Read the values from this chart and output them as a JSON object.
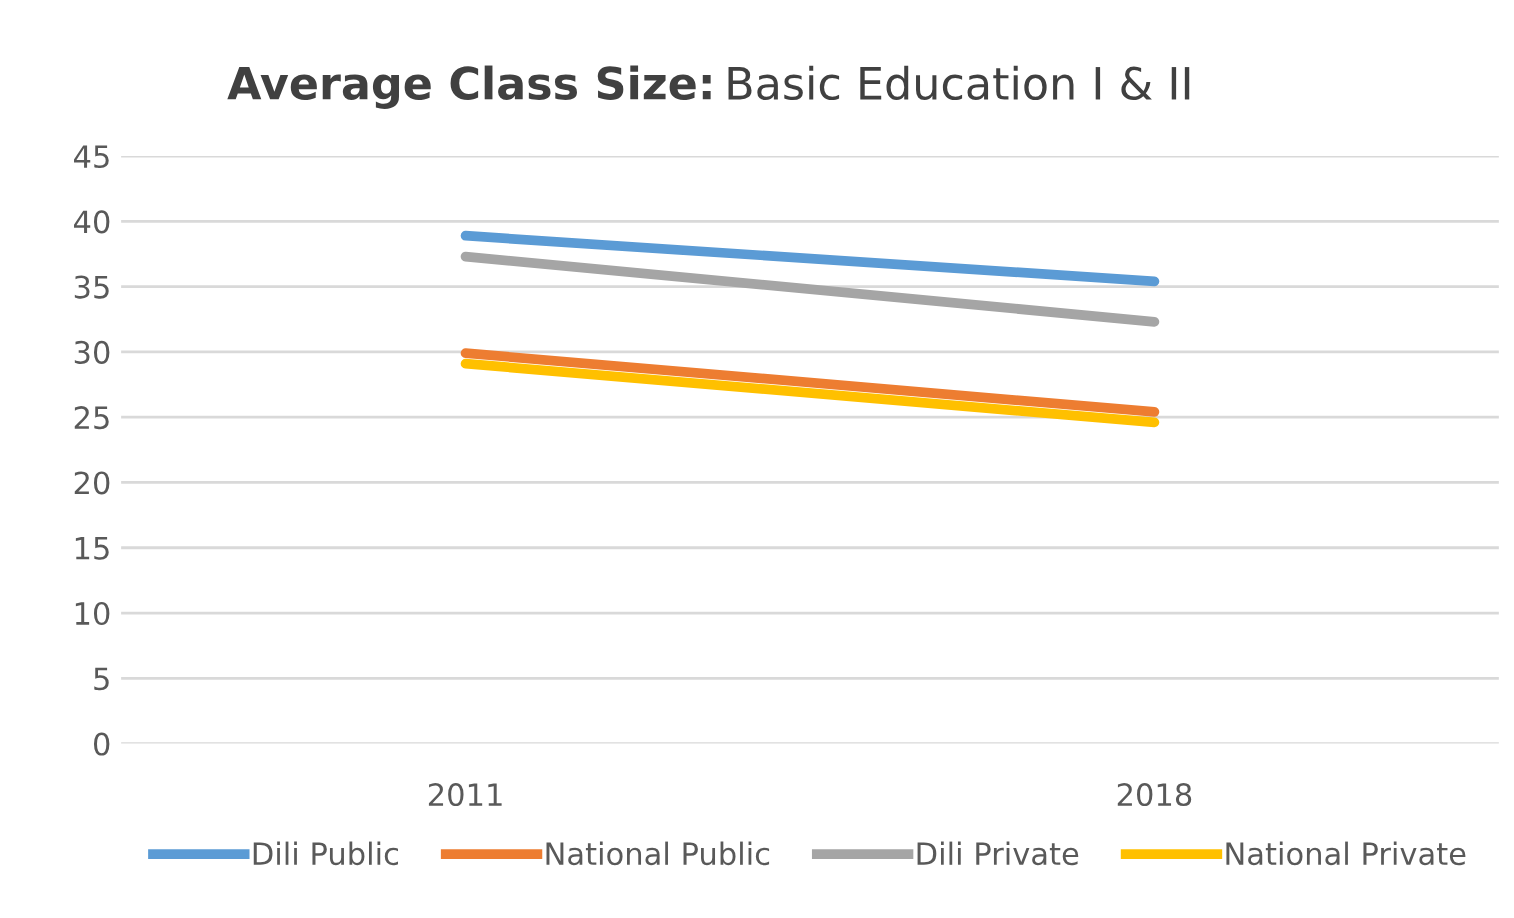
{
  "chart_data": {
    "type": "line",
    "title": "Average Class Size: Basic Education I & II",
    "categories": [
      "2011",
      "2018"
    ],
    "series": [
      {
        "name": "Dili Public",
        "color": "#5b9bd5",
        "values": [
          38.9,
          35.4
        ]
      },
      {
        "name": "National Public",
        "color": "#ed7d31",
        "values": [
          29.9,
          25.4
        ]
      },
      {
        "name": "Dili Private",
        "color": "#a5a5a5",
        "values": [
          37.3,
          32.3
        ]
      },
      {
        "name": "National Private",
        "color": "#ffc000",
        "values": [
          29.1,
          24.6
        ]
      }
    ],
    "ylim": [
      0,
      45
    ],
    "yticks": [
      0,
      5,
      10,
      15,
      20,
      25,
      30,
      35,
      40,
      45
    ],
    "grid": "y",
    "legend": "bottom",
    "marker": "none",
    "line_style": "solid"
  }
}
